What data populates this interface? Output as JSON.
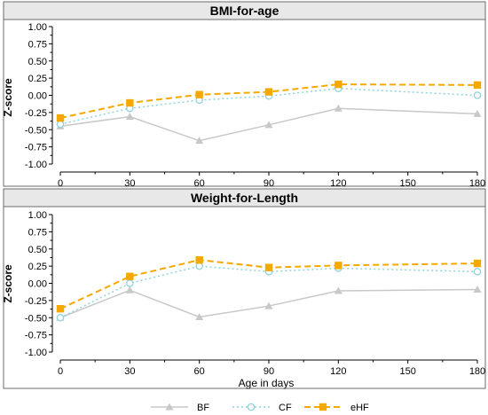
{
  "chart_data": [
    {
      "type": "line",
      "title": "BMI-for-age",
      "xlabel": "",
      "ylabel": "Z-score",
      "x": [
        0,
        30,
        60,
        90,
        120,
        180
      ],
      "xticks": [
        "0",
        "30",
        "60",
        "90",
        "120",
        "150",
        "180"
      ],
      "yticks": [
        "1.00",
        "0.75",
        "0.50",
        "0.25",
        "0.00",
        "-0.25",
        "-0.50",
        "-0.75",
        "-1.00"
      ],
      "xlim": [
        0,
        180
      ],
      "ylim": [
        -1.0,
        1.0
      ],
      "grid": false,
      "series": [
        {
          "name": "BF",
          "values": [
            -0.45,
            -0.31,
            -0.66,
            -0.43,
            -0.19,
            -0.27
          ]
        },
        {
          "name": "CF",
          "values": [
            -0.42,
            -0.19,
            -0.07,
            -0.01,
            0.1,
            0.0
          ]
        },
        {
          "name": "eHF",
          "values": [
            -0.33,
            -0.11,
            0.01,
            0.05,
            0.16,
            0.15
          ]
        }
      ]
    },
    {
      "type": "line",
      "title": "Weight-for-Length",
      "xlabel": "Age in days",
      "ylabel": "Z-score",
      "x": [
        0,
        30,
        60,
        90,
        120,
        180
      ],
      "xticks": [
        "0",
        "30",
        "60",
        "90",
        "120",
        "150",
        "180"
      ],
      "yticks": [
        "1.00",
        "0.75",
        "0.50",
        "0.25",
        "0.00",
        "-0.25",
        "-0.50",
        "-0.75",
        "-1.00"
      ],
      "xlim": [
        0,
        180
      ],
      "ylim": [
        -1.0,
        1.0
      ],
      "grid": false,
      "series": [
        {
          "name": "BF",
          "values": [
            -0.5,
            -0.1,
            -0.49,
            -0.33,
            -0.11,
            -0.09
          ]
        },
        {
          "name": "CF",
          "values": [
            -0.5,
            0.0,
            0.25,
            0.17,
            0.22,
            0.17
          ]
        },
        {
          "name": "eHF",
          "values": [
            -0.37,
            0.1,
            0.34,
            0.23,
            0.26,
            0.29
          ]
        }
      ]
    }
  ],
  "legend": {
    "placement": "bottom-center",
    "items": [
      {
        "label": "BF",
        "color": "#c8c8c8",
        "marker": "triangle",
        "dash": "solid"
      },
      {
        "label": "CF",
        "color": "#8fd3dc",
        "marker": "circle-open",
        "dash": "dotted"
      },
      {
        "label": "eHF",
        "color": "#f5a800",
        "marker": "square",
        "dash": "dashed"
      }
    ]
  },
  "colors": {
    "BF": "#c8c8c8",
    "CF": "#8fd3dc",
    "eHF": "#f5a800",
    "panel_header": "#e8e8e8"
  }
}
